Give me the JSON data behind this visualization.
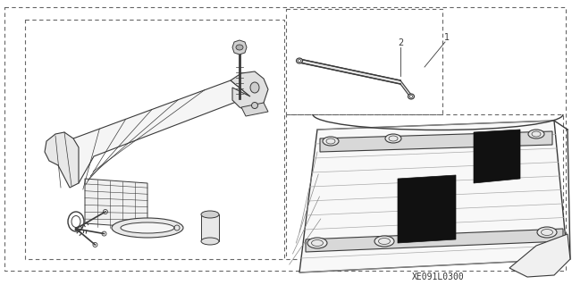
{
  "bg_color": "#ffffff",
  "line_color": "#3a3a3a",
  "dashed_color": "#666666",
  "fill_light": "#f0f0f0",
  "fill_medium": "#d8d8d8",
  "fill_dark": "#111111",
  "label_1": "1",
  "label_2": "2",
  "part_number": "XE091L0300",
  "figsize": [
    6.4,
    3.19
  ],
  "dpi": 100
}
